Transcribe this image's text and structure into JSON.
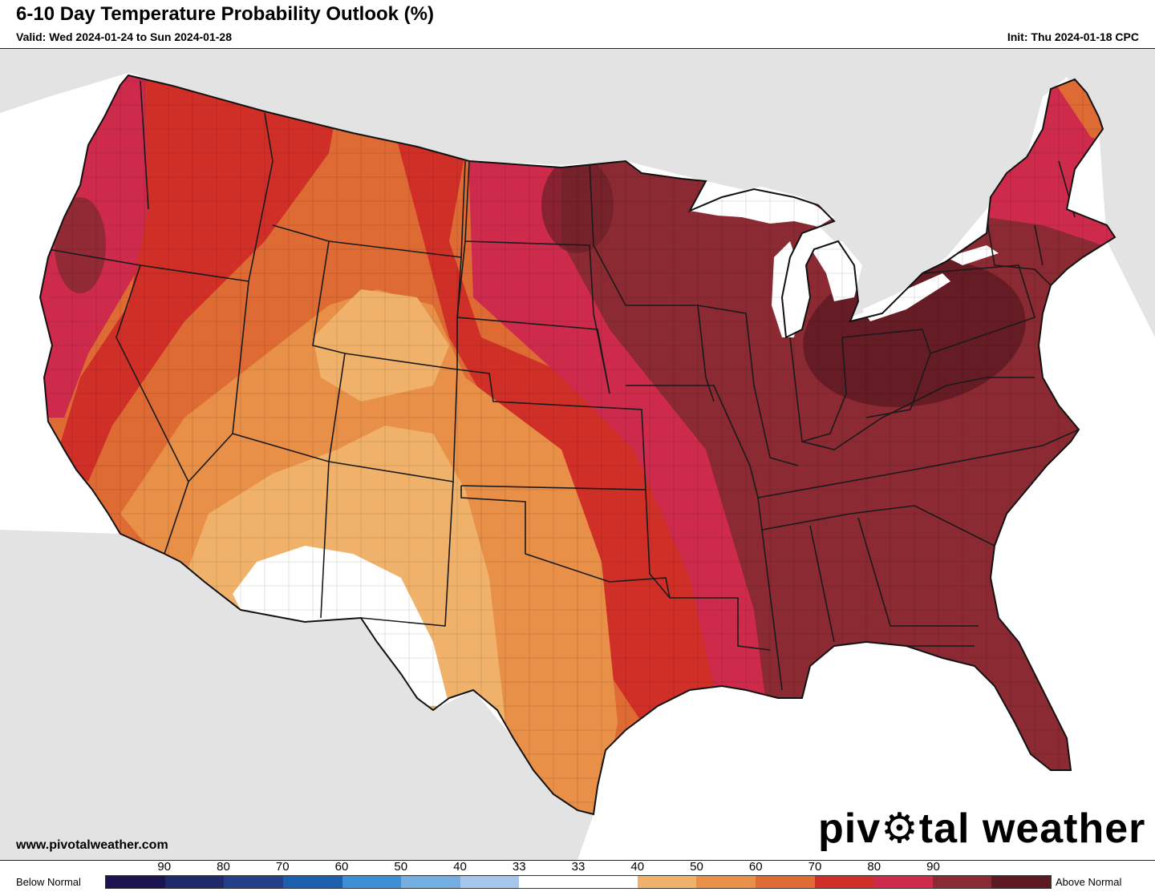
{
  "header": {
    "title": "6-10 Day Temperature Probability Outlook (%)",
    "valid": "Valid: Wed 2024-01-24 to Sun 2024-01-28",
    "init": "Init: Thu 2024-01-18 CPC"
  },
  "footer": {
    "website": "www.pivotalweather.com",
    "logo_text_before": "piv",
    "logo_text_after": "tal weather"
  },
  "legend": {
    "below_label": "Below Normal",
    "above_label": "Above Normal",
    "tick_labels": [
      "90",
      "80",
      "70",
      "60",
      "50",
      "40",
      "33",
      "33",
      "40",
      "50",
      "60",
      "70",
      "80",
      "90"
    ],
    "colors": [
      "#1c1450",
      "#1f2a6b",
      "#24408a",
      "#1b5fae",
      "#3c8fd4",
      "#74aee0",
      "#a5c6e8",
      "#ffffff",
      "#ffffff",
      "#f0b26a",
      "#e88f48",
      "#de6a34",
      "#cf2f27",
      "#cd2a4c",
      "#8c2a33",
      "#5e1a22"
    ]
  },
  "map": {
    "colors": {
      "background_land": "#e3e3e3",
      "water": "#ffffff",
      "p33": "#ffffff",
      "p40": "#f0b26a",
      "p50": "#e88f48",
      "p60": "#de6a34",
      "p70": "#cf2f27",
      "p80": "#cd2a4c",
      "p90": "#8c2a33",
      "p90_dark": "#5e1a22"
    }
  }
}
